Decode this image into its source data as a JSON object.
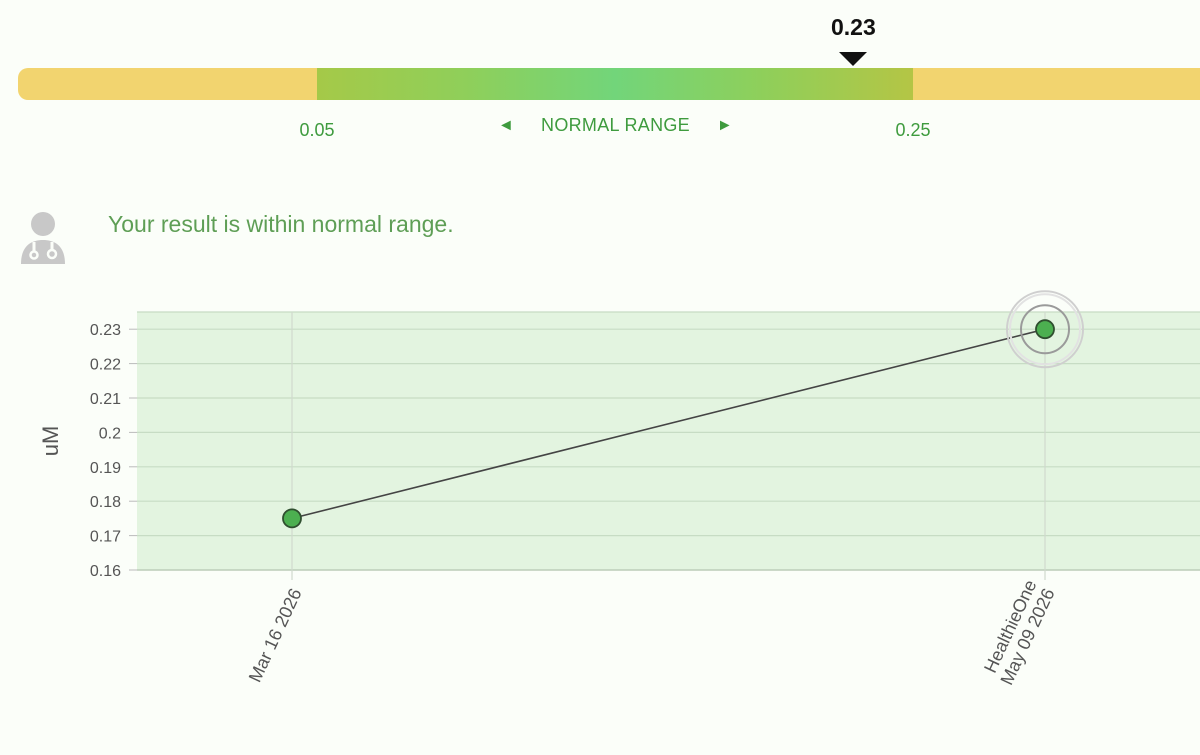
{
  "range_bar": {
    "current_value": 0.23,
    "current_value_label": "0.23",
    "normal_low": 0.05,
    "normal_low_label": "0.05",
    "normal_high": 0.25,
    "normal_high_label": "0.25",
    "normal_range_label": "NORMAL RANGE",
    "left_arrow": "◄",
    "right_arrow": "►",
    "colors": {
      "out_of_range": "#f2d46f",
      "in_range": "#72d57a",
      "marker": "#111111"
    }
  },
  "result": {
    "icon": "doctor-icon",
    "message": "Your result is within normal range."
  },
  "chart_data": {
    "type": "line",
    "ylabel": "uM",
    "ylim": [
      0.16,
      0.235
    ],
    "yticks": [
      "0.16",
      "0.17",
      "0.18",
      "0.19",
      "0.2",
      "0.21",
      "0.22",
      "0.23"
    ],
    "series": [
      {
        "points": [
          {
            "x_label": [
              "Mar 16 2026"
            ],
            "y": 0.175
          },
          {
            "x_label": [
              "HealthieOne",
              "May 09 2026"
            ],
            "y": 0.23
          }
        ]
      }
    ],
    "grid": true,
    "colors": {
      "plot_background": "#e3f4e0",
      "point": "#4caf50",
      "line": "#444444"
    }
  }
}
